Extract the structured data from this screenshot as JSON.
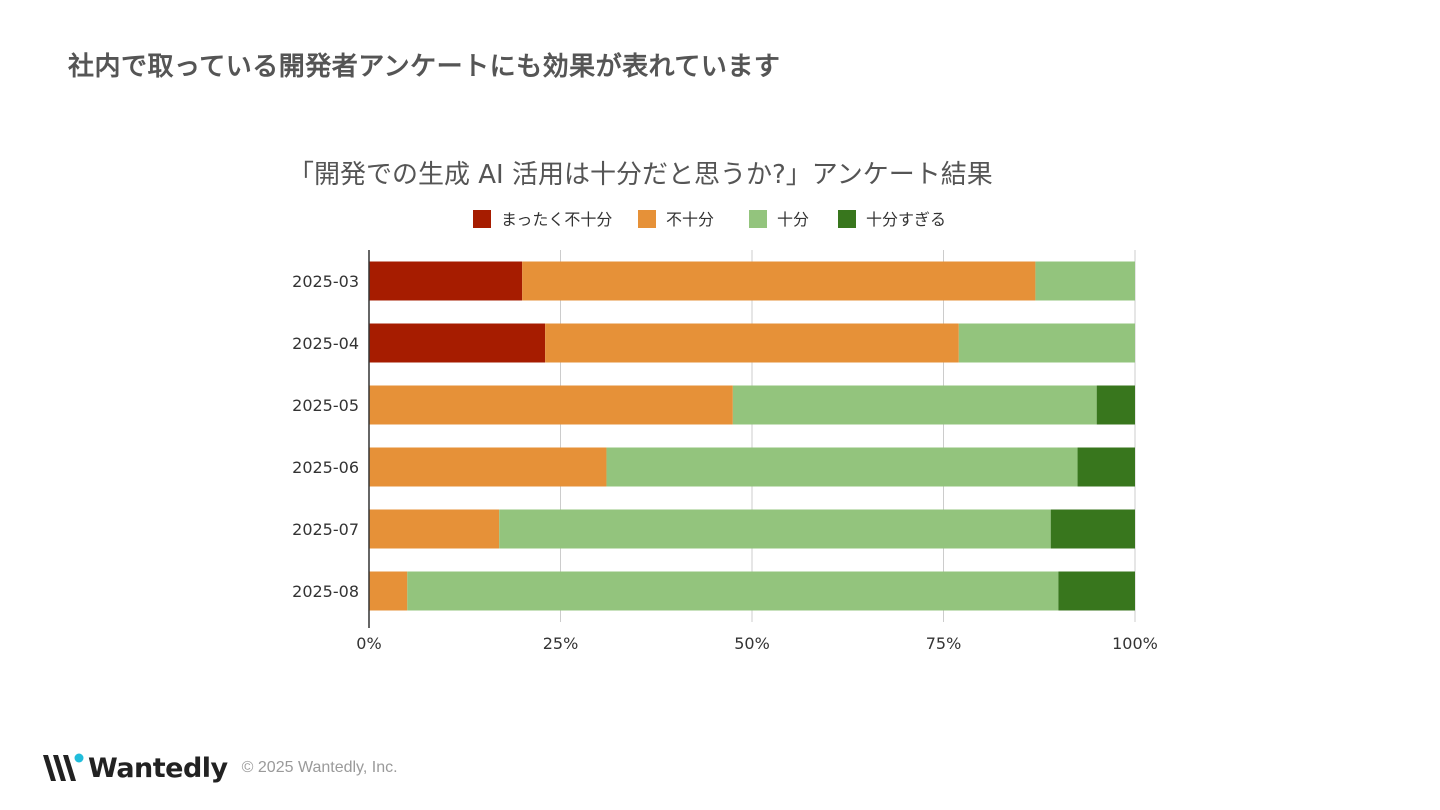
{
  "slide": {
    "title": "社内で取っている開発者アンケートにも効果が表れています"
  },
  "footer": {
    "logo_text": "Wantedly",
    "copyright": "© 2025 Wantedly, Inc."
  },
  "chart_data": {
    "type": "bar",
    "orientation": "horizontal",
    "stacked": "percent",
    "title": "「開発での生成 AI 活用は十分だと思うか?」アンケート結果",
    "legend_position": "top",
    "categories": [
      "2025-03",
      "2025-04",
      "2025-05",
      "2025-06",
      "2025-07",
      "2025-08"
    ],
    "series": [
      {
        "name": "まったく不十分",
        "color": "#a61c00",
        "values": [
          20,
          23,
          0,
          0,
          0,
          0
        ]
      },
      {
        "name": "不十分",
        "color": "#e69138",
        "values": [
          67,
          54,
          47.5,
          31,
          17,
          5
        ]
      },
      {
        "name": "十分",
        "color": "#93c47d",
        "values": [
          13,
          23,
          47.5,
          61.5,
          72,
          85
        ]
      },
      {
        "name": "十分すぎる",
        "color": "#38761d",
        "values": [
          0,
          0,
          5,
          7.5,
          11,
          10
        ]
      }
    ],
    "x_ticks": [
      "0%",
      "25%",
      "50%",
      "75%",
      "100%"
    ],
    "xlim": [
      0,
      100
    ],
    "grid": true
  }
}
